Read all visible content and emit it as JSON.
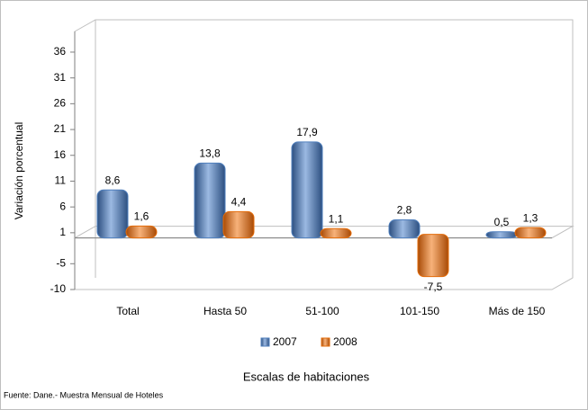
{
  "chart_data": {
    "type": "bar",
    "y_axis_label": "Variación porcentual",
    "x_axis_label": "Escalas de habitaciones",
    "source": "Fuente: Dane.- Muestra Mensual de Hoteles",
    "categories": [
      "Total",
      "Hasta 50",
      "51-100",
      "101-150",
      "Más de 150"
    ],
    "series": [
      {
        "name": "2007",
        "color": "#4f7fbd",
        "values": [
          8.6,
          13.8,
          17.9,
          2.8,
          0.5
        ],
        "value_labels": [
          "8,6",
          "13,8",
          "17,9",
          "2,8",
          "0,5"
        ]
      },
      {
        "name": "2008",
        "color": "#e46c0a",
        "values": [
          1.6,
          4.4,
          1.1,
          -7.5,
          1.3
        ],
        "value_labels": [
          "1,6",
          "4,4",
          "1,1",
          "-7,5",
          "1,3"
        ]
      }
    ],
    "ylim": [
      -10,
      40
    ],
    "yticks": [
      -10,
      -5,
      1,
      6,
      11,
      16,
      21,
      26,
      31,
      36
    ],
    "grid": false,
    "legend": "bottom"
  }
}
